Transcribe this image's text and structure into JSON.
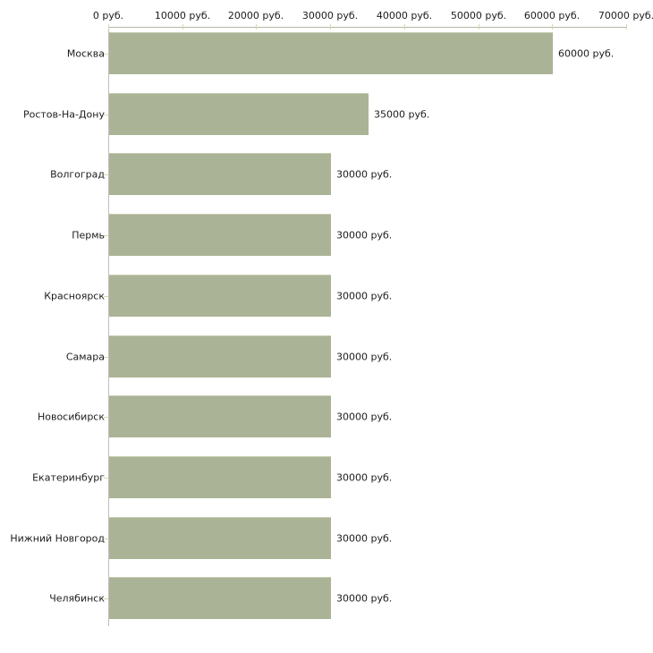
{
  "chart_data": {
    "type": "bar",
    "orientation": "horizontal",
    "title": "",
    "xlabel": "",
    "ylabel": "",
    "unit": "руб.",
    "xlim": [
      0,
      70000
    ],
    "grid": false,
    "legend": null,
    "categories": [
      "Москва",
      "Ростов-На-Дону",
      "Волгоград",
      "Пермь",
      "Красноярск",
      "Самара",
      "Новосибирск",
      "Екатеринбург",
      "Нижний Новгород",
      "Челябинск"
    ],
    "values": [
      60000,
      35000,
      30000,
      30000,
      30000,
      30000,
      30000,
      30000,
      30000,
      30000
    ],
    "value_labels": [
      "60000 руб.",
      "35000 руб.",
      "30000 руб.",
      "30000 руб.",
      "30000 руб.",
      "30000 руб.",
      "30000 руб.",
      "30000 руб.",
      "30000 руб.",
      "30000 руб."
    ],
    "x_ticks": [
      0,
      10000,
      20000,
      30000,
      40000,
      50000,
      60000,
      70000
    ],
    "x_tick_labels": [
      "0 руб.",
      "10000 руб.",
      "20000 руб.",
      "30000 руб.",
      "40000 руб.",
      "50000 руб.",
      "60000 руб.",
      "70000 руб."
    ],
    "colors": {
      "bar_fill": "#abb396",
      "bar_top_highlight": "#c6cbb2",
      "x_axis_line": "#b4b4a4",
      "y_axis_line": "#c0c0c0",
      "tick_mark": "#d8d8b0",
      "text": "#1c1c1c",
      "background": "#ffffff"
    }
  }
}
